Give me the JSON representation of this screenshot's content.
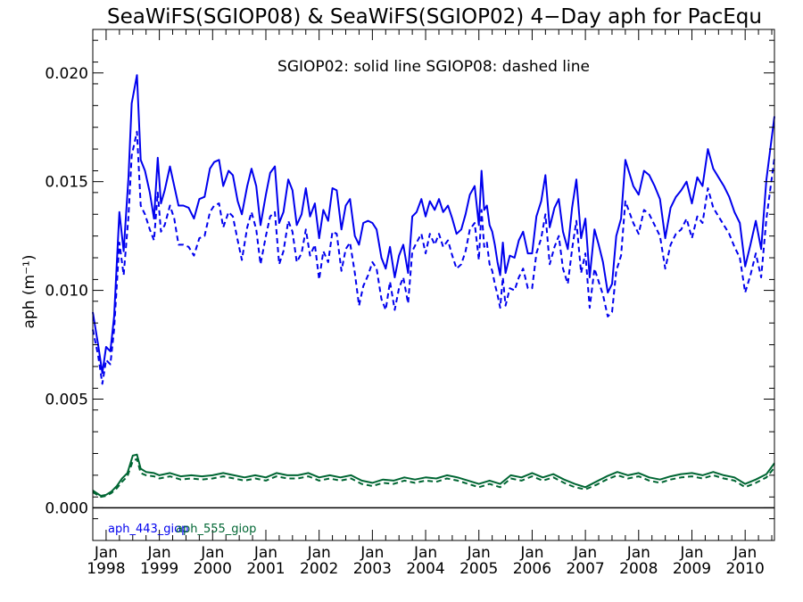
{
  "chart_data": {
    "type": "line",
    "title": "SeaWiFS(SGIOP08) & SeaWiFS(SGIOP02) 4−Day aph for PacEqu",
    "note": "SGIOP02: solid line   SGIOP08: dashed line",
    "ylabel": "aph (m⁻¹)",
    "xlim": [
      1997.75,
      2010.55
    ],
    "ylim": [
      -0.0015,
      0.022
    ],
    "yticks": [
      0.0,
      0.005,
      0.01,
      0.015,
      0.02
    ],
    "ytick_labels": [
      "0.000",
      "0.005",
      "0.010",
      "0.015",
      "0.020"
    ],
    "xticks": [
      1998,
      1999,
      2000,
      2001,
      2002,
      2003,
      2004,
      2005,
      2006,
      2007,
      2008,
      2009,
      2010
    ],
    "xtick_labels": [
      [
        "Jan",
        "1998"
      ],
      [
        "Jan",
        "1999"
      ],
      [
        "Jan",
        "2000"
      ],
      [
        "Jan",
        "2001"
      ],
      [
        "Jan",
        "2002"
      ],
      [
        "Jan",
        "2003"
      ],
      [
        "Jan",
        "2004"
      ],
      [
        "Jan",
        "2005"
      ],
      [
        "Jan",
        "2006"
      ],
      [
        "Jan",
        "2007"
      ],
      [
        "Jan",
        "2008"
      ],
      [
        "Jan",
        "2009"
      ],
      [
        "Jan",
        "2010"
      ]
    ],
    "zero_line": true,
    "legend": [
      {
        "label": "aph_443_giop",
        "color": "#0000ee"
      },
      {
        "label": "aph_555_giop",
        "color": "#006633"
      }
    ],
    "series": [
      {
        "name": "aph_443_giop",
        "style": "solid",
        "color": "#0000ee",
        "x": [
          1997.75,
          1997.85,
          1997.93,
          1998.0,
          1998.08,
          1998.15,
          1998.25,
          1998.33,
          1998.42,
          1998.48,
          1998.58,
          1998.65,
          1998.73,
          1998.82,
          1998.9,
          1998.97,
          1999.03,
          1999.1,
          1999.2,
          1999.28,
          1999.36,
          1999.45,
          1999.55,
          1999.65,
          1999.75,
          1999.85,
          1999.95,
          2000.03,
          2000.12,
          2000.2,
          2000.3,
          2000.38,
          2000.47,
          2000.55,
          2000.65,
          2000.73,
          2000.82,
          2000.9,
          2001.0,
          2001.08,
          2001.17,
          2001.25,
          2001.33,
          2001.42,
          2001.5,
          2001.58,
          2001.67,
          2001.75,
          2001.83,
          2001.92,
          2002.0,
          2002.08,
          2002.17,
          2002.25,
          2002.33,
          2002.42,
          2002.5,
          2002.58,
          2002.67,
          2002.75,
          2002.83,
          2002.92,
          2003.0,
          2003.08,
          2003.17,
          2003.25,
          2003.33,
          2003.42,
          2003.5,
          2003.58,
          2003.67,
          2003.75,
          2003.83,
          2003.92,
          2004.0,
          2004.08,
          2004.17,
          2004.25,
          2004.33,
          2004.42,
          2004.5,
          2004.58,
          2004.67,
          2004.75,
          2004.83,
          2004.92,
          2005.0,
          2005.05,
          2005.1,
          2005.15,
          2005.2,
          2005.25,
          2005.3,
          2005.35,
          2005.4,
          2005.45,
          2005.5,
          2005.58,
          2005.67,
          2005.75,
          2005.83,
          2005.92,
          2006.0,
          2006.08,
          2006.17,
          2006.25,
          2006.33,
          2006.42,
          2006.5,
          2006.58,
          2006.67,
          2006.75,
          2006.83,
          2006.92,
          2007.0,
          2007.08,
          2007.17,
          2007.25,
          2007.33,
          2007.42,
          2007.5,
          2007.58,
          2007.67,
          2007.75,
          2007.9,
          2008.0,
          2008.1,
          2008.2,
          2008.3,
          2008.4,
          2008.5,
          2008.6,
          2008.7,
          2008.8,
          2008.9,
          2009.0,
          2009.1,
          2009.2,
          2009.3,
          2009.4,
          2009.5,
          2009.6,
          2009.7,
          2009.8,
          2009.9,
          2010.0,
          2010.1,
          2010.2,
          2010.3,
          2010.4,
          2010.55
        ],
        "y": [
          0.009,
          0.0075,
          0.0062,
          0.0074,
          0.0072,
          0.0088,
          0.0136,
          0.0118,
          0.0152,
          0.0186,
          0.0199,
          0.016,
          0.0155,
          0.0145,
          0.0133,
          0.0161,
          0.014,
          0.0146,
          0.0157,
          0.0148,
          0.0139,
          0.0139,
          0.0138,
          0.0133,
          0.0142,
          0.0143,
          0.0156,
          0.0159,
          0.016,
          0.0148,
          0.0155,
          0.0153,
          0.0141,
          0.0135,
          0.0148,
          0.0156,
          0.0148,
          0.013,
          0.0144,
          0.0154,
          0.0157,
          0.0131,
          0.0136,
          0.0151,
          0.0146,
          0.013,
          0.0135,
          0.0147,
          0.0134,
          0.014,
          0.0124,
          0.0137,
          0.0132,
          0.0147,
          0.0146,
          0.0128,
          0.0139,
          0.0142,
          0.0125,
          0.0121,
          0.0131,
          0.0132,
          0.0131,
          0.0128,
          0.0115,
          0.011,
          0.012,
          0.0106,
          0.0116,
          0.0121,
          0.0108,
          0.0134,
          0.0136,
          0.0142,
          0.0134,
          0.0141,
          0.0137,
          0.0142,
          0.0136,
          0.0139,
          0.0133,
          0.0126,
          0.0128,
          0.0135,
          0.0144,
          0.0148,
          0.013,
          0.0155,
          0.0137,
          0.0139,
          0.013,
          0.0127,
          0.0121,
          0.0113,
          0.0107,
          0.0122,
          0.0108,
          0.0116,
          0.0115,
          0.0123,
          0.0127,
          0.0117,
          0.0117,
          0.0134,
          0.0141,
          0.0153,
          0.0129,
          0.0138,
          0.0142,
          0.0127,
          0.0119,
          0.0138,
          0.0151,
          0.0124,
          0.0133,
          0.0106,
          0.0128,
          0.0121,
          0.0113,
          0.0099,
          0.0103,
          0.0125,
          0.0133,
          0.016,
          0.0148,
          0.0144,
          0.0155,
          0.0153,
          0.0148,
          0.0142,
          0.0124,
          0.0138,
          0.0143,
          0.0146,
          0.015,
          0.014,
          0.0152,
          0.0148,
          0.0165,
          0.0156,
          0.0152,
          0.0148,
          0.0143,
          0.0136,
          0.0131,
          0.0111,
          0.0121,
          0.0132,
          0.0119,
          0.0151,
          0.018
        ]
      },
      {
        "name": "aph_443_giop",
        "style": "dashed",
        "color": "#0000ee",
        "x": [
          1997.75,
          1997.85,
          1997.93,
          1998.0,
          1998.08,
          1998.15,
          1998.25,
          1998.33,
          1998.42,
          1998.48,
          1998.58,
          1998.65,
          1998.73,
          1998.82,
          1998.9,
          1998.97,
          1999.03,
          1999.1,
          1999.2,
          1999.28,
          1999.36,
          1999.45,
          1999.55,
          1999.65,
          1999.75,
          1999.85,
          1999.95,
          2000.03,
          2000.12,
          2000.2,
          2000.3,
          2000.38,
          2000.47,
          2000.55,
          2000.65,
          2000.73,
          2000.82,
          2000.9,
          2001.0,
          2001.08,
          2001.17,
          2001.25,
          2001.33,
          2001.42,
          2001.5,
          2001.58,
          2001.67,
          2001.75,
          2001.83,
          2001.92,
          2002.0,
          2002.08,
          2002.17,
          2002.25,
          2002.33,
          2002.42,
          2002.5,
          2002.58,
          2002.67,
          2002.75,
          2002.83,
          2002.92,
          2003.0,
          2003.08,
          2003.17,
          2003.25,
          2003.33,
          2003.42,
          2003.5,
          2003.58,
          2003.67,
          2003.75,
          2003.83,
          2003.92,
          2004.0,
          2004.08,
          2004.17,
          2004.25,
          2004.33,
          2004.42,
          2004.5,
          2004.58,
          2004.67,
          2004.75,
          2004.83,
          2004.92,
          2005.0,
          2005.05,
          2005.1,
          2005.15,
          2005.2,
          2005.25,
          2005.3,
          2005.35,
          2005.4,
          2005.45,
          2005.5,
          2005.58,
          2005.67,
          2005.75,
          2005.83,
          2005.92,
          2006.0,
          2006.08,
          2006.17,
          2006.25,
          2006.33,
          2006.42,
          2006.5,
          2006.58,
          2006.67,
          2006.75,
          2006.83,
          2006.92,
          2007.0,
          2007.08,
          2007.17,
          2007.25,
          2007.33,
          2007.42,
          2007.5,
          2007.58,
          2007.67,
          2007.75,
          2007.9,
          2008.0,
          2008.1,
          2008.2,
          2008.3,
          2008.4,
          2008.5,
          2008.6,
          2008.7,
          2008.8,
          2008.9,
          2009.0,
          2009.1,
          2009.2,
          2009.3,
          2009.4,
          2009.5,
          2009.6,
          2009.7,
          2009.8,
          2009.9,
          2010.0,
          2010.1,
          2010.2,
          2010.3,
          2010.4,
          2010.55
        ],
        "y": [
          0.0082,
          0.007,
          0.0057,
          0.0068,
          0.0066,
          0.0082,
          0.0122,
          0.0107,
          0.0134,
          0.0162,
          0.0173,
          0.0139,
          0.0135,
          0.0128,
          0.0123,
          0.0145,
          0.0127,
          0.013,
          0.0139,
          0.0133,
          0.0121,
          0.0121,
          0.012,
          0.0116,
          0.0124,
          0.0125,
          0.0136,
          0.0139,
          0.014,
          0.0129,
          0.0136,
          0.0134,
          0.0123,
          0.0114,
          0.0129,
          0.0136,
          0.0128,
          0.0112,
          0.0125,
          0.0134,
          0.0136,
          0.0112,
          0.0118,
          0.0132,
          0.0127,
          0.0113,
          0.0117,
          0.0128,
          0.0116,
          0.0121,
          0.0105,
          0.0118,
          0.0113,
          0.0127,
          0.0126,
          0.0109,
          0.0119,
          0.0122,
          0.0108,
          0.0093,
          0.0102,
          0.0107,
          0.0113,
          0.011,
          0.0096,
          0.0091,
          0.0104,
          0.0091,
          0.0101,
          0.0106,
          0.0094,
          0.0118,
          0.0122,
          0.0126,
          0.0117,
          0.0126,
          0.0121,
          0.0126,
          0.012,
          0.0123,
          0.0116,
          0.011,
          0.0112,
          0.0118,
          0.0128,
          0.0131,
          0.0114,
          0.0137,
          0.012,
          0.0122,
          0.0112,
          0.0109,
          0.0103,
          0.0098,
          0.0092,
          0.0106,
          0.0093,
          0.0101,
          0.01,
          0.0106,
          0.011,
          0.0101,
          0.0101,
          0.0117,
          0.0124,
          0.0135,
          0.0112,
          0.012,
          0.0125,
          0.011,
          0.0103,
          0.0119,
          0.0132,
          0.0108,
          0.0117,
          0.0092,
          0.011,
          0.0104,
          0.0098,
          0.0088,
          0.009,
          0.0109,
          0.0116,
          0.0141,
          0.0131,
          0.0126,
          0.0137,
          0.0135,
          0.013,
          0.0125,
          0.011,
          0.0121,
          0.0126,
          0.0128,
          0.0133,
          0.0124,
          0.0134,
          0.0131,
          0.0147,
          0.0138,
          0.0134,
          0.013,
          0.0126,
          0.012,
          0.0115,
          0.0099,
          0.0107,
          0.0117,
          0.0106,
          0.0133,
          0.0161
        ]
      },
      {
        "name": "aph_555_giop",
        "style": "solid",
        "color": "#006633",
        "x": [
          1997.75,
          1997.9,
          1998.0,
          1998.1,
          1998.2,
          1998.3,
          1998.4,
          1998.5,
          1998.58,
          1998.65,
          1998.75,
          1998.9,
          1999.0,
          1999.2,
          1999.4,
          1999.6,
          1999.8,
          2000.0,
          2000.2,
          2000.4,
          2000.6,
          2000.8,
          2001.0,
          2001.2,
          2001.4,
          2001.6,
          2001.8,
          2002.0,
          2002.2,
          2002.4,
          2002.6,
          2002.8,
          2003.0,
          2003.2,
          2003.4,
          2003.6,
          2003.8,
          2004.0,
          2004.2,
          2004.4,
          2004.6,
          2004.8,
          2005.0,
          2005.2,
          2005.4,
          2005.6,
          2005.8,
          2006.0,
          2006.2,
          2006.4,
          2006.6,
          2006.8,
          2007.0,
          2007.2,
          2007.4,
          2007.6,
          2007.8,
          2008.0,
          2008.2,
          2008.4,
          2008.6,
          2008.8,
          2009.0,
          2009.2,
          2009.4,
          2009.6,
          2009.8,
          2010.0,
          2010.2,
          2010.4,
          2010.55
        ],
        "y": [
          0.0008,
          0.00055,
          0.0006,
          0.00075,
          0.001,
          0.00135,
          0.0016,
          0.0024,
          0.00245,
          0.0018,
          0.00165,
          0.0016,
          0.0015,
          0.0016,
          0.00145,
          0.0015,
          0.00145,
          0.0015,
          0.0016,
          0.0015,
          0.0014,
          0.0015,
          0.0014,
          0.0016,
          0.0015,
          0.0015,
          0.0016,
          0.0014,
          0.0015,
          0.0014,
          0.0015,
          0.00125,
          0.00115,
          0.0013,
          0.00125,
          0.0014,
          0.0013,
          0.0014,
          0.00135,
          0.0015,
          0.0014,
          0.00125,
          0.0011,
          0.00125,
          0.0011,
          0.0015,
          0.0014,
          0.0016,
          0.0014,
          0.00155,
          0.0013,
          0.0011,
          0.00095,
          0.0012,
          0.00145,
          0.00165,
          0.0015,
          0.0016,
          0.0014,
          0.0013,
          0.00145,
          0.00155,
          0.0016,
          0.0015,
          0.00165,
          0.0015,
          0.0014,
          0.0011,
          0.0013,
          0.00155,
          0.00205
        ]
      },
      {
        "name": "aph_555_giop",
        "style": "dashed",
        "color": "#006633",
        "x": [
          1997.75,
          1997.9,
          1998.0,
          1998.1,
          1998.2,
          1998.3,
          1998.4,
          1998.5,
          1998.58,
          1998.65,
          1998.75,
          1998.9,
          1999.0,
          1999.2,
          1999.4,
          1999.6,
          1999.8,
          2000.0,
          2000.2,
          2000.4,
          2000.6,
          2000.8,
          2001.0,
          2001.2,
          2001.4,
          2001.6,
          2001.8,
          2002.0,
          2002.2,
          2002.4,
          2002.6,
          2002.8,
          2003.0,
          2003.2,
          2003.4,
          2003.6,
          2003.8,
          2004.0,
          2004.2,
          2004.4,
          2004.6,
          2004.8,
          2005.0,
          2005.2,
          2005.4,
          2005.6,
          2005.8,
          2006.0,
          2006.2,
          2006.4,
          2006.6,
          2006.8,
          2007.0,
          2007.2,
          2007.4,
          2007.6,
          2007.8,
          2008.0,
          2008.2,
          2008.4,
          2008.6,
          2008.8,
          2009.0,
          2009.2,
          2009.4,
          2009.6,
          2009.8,
          2010.0,
          2010.2,
          2010.4,
          2010.55
        ],
        "y": [
          0.00072,
          0.0005,
          0.00055,
          0.00068,
          0.0009,
          0.0012,
          0.00145,
          0.00215,
          0.00225,
          0.0016,
          0.0015,
          0.00145,
          0.00135,
          0.00145,
          0.0013,
          0.00135,
          0.0013,
          0.00135,
          0.00145,
          0.00135,
          0.00125,
          0.00135,
          0.00125,
          0.00145,
          0.00135,
          0.00135,
          0.00145,
          0.00125,
          0.00135,
          0.00125,
          0.00135,
          0.0011,
          0.001,
          0.00115,
          0.0011,
          0.00125,
          0.00115,
          0.00125,
          0.0012,
          0.00135,
          0.00125,
          0.0011,
          0.00095,
          0.0011,
          0.00095,
          0.00135,
          0.00125,
          0.00145,
          0.00125,
          0.0014,
          0.00115,
          0.00095,
          0.00085,
          0.00105,
          0.0013,
          0.0015,
          0.00135,
          0.00145,
          0.00125,
          0.00115,
          0.0013,
          0.0014,
          0.00145,
          0.00135,
          0.0015,
          0.00135,
          0.00125,
          0.00095,
          0.00115,
          0.0014,
          0.00185
        ]
      }
    ]
  }
}
